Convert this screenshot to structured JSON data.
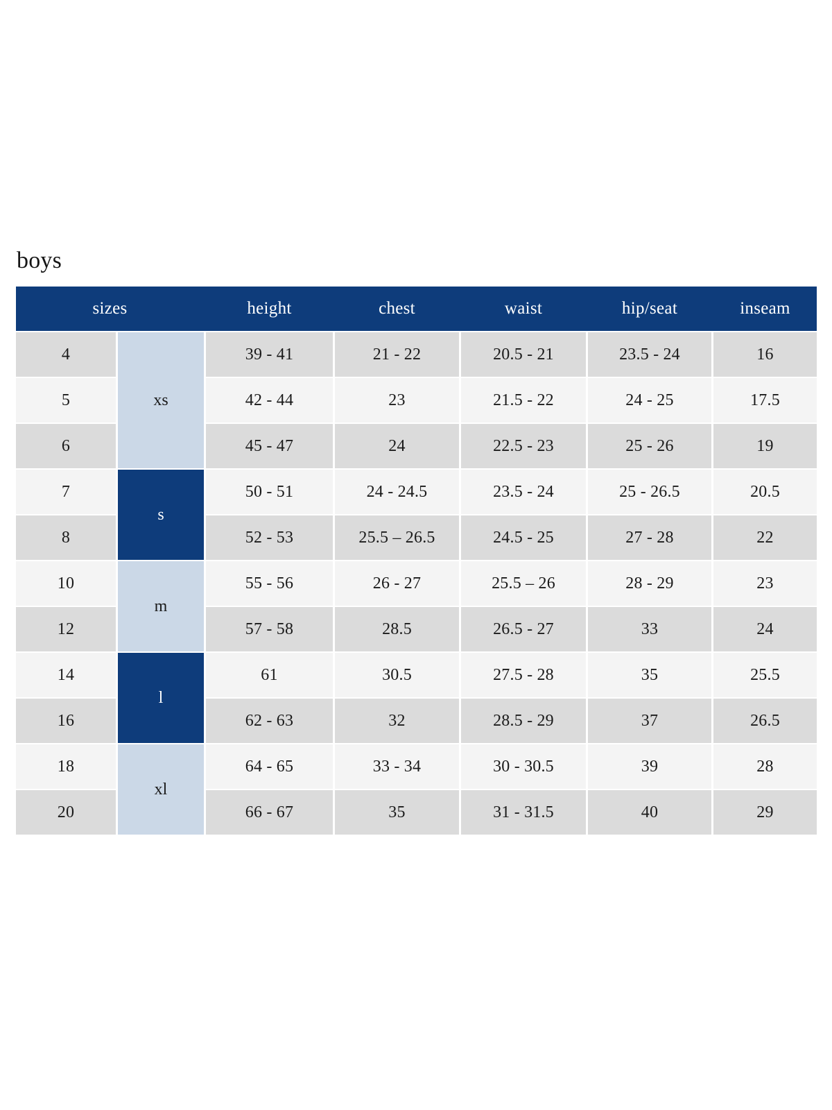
{
  "page": {
    "title": "boys"
  },
  "colors": {
    "header_navy": "#0e3c7b",
    "group_light_blue": "#cbd8e7",
    "row_gray": "#dbdbdb",
    "row_light": "#f4f4f4",
    "text_dark": "#1a1a1a",
    "text_white": "#ffffff"
  },
  "table": {
    "columns": [
      "sizes",
      "height",
      "chest",
      "waist",
      "hip/seat",
      "inseam"
    ],
    "groups": [
      {
        "label": "xs",
        "rows": 3,
        "variant": "light"
      },
      {
        "label": "s",
        "rows": 2,
        "variant": "dark"
      },
      {
        "label": "m",
        "rows": 2,
        "variant": "light"
      },
      {
        "label": "l",
        "rows": 2,
        "variant": "dark"
      },
      {
        "label": "xl",
        "rows": 2,
        "variant": "light"
      }
    ],
    "rows": [
      {
        "size": "4",
        "height": "39 - 41",
        "chest": "21 - 22",
        "waist": "20.5 - 21",
        "hip_seat": "23.5 - 24",
        "inseam": "16"
      },
      {
        "size": "5",
        "height": "42 - 44",
        "chest": "23",
        "waist": "21.5 - 22",
        "hip_seat": "24 - 25",
        "inseam": "17.5"
      },
      {
        "size": "6",
        "height": "45 - 47",
        "chest": "24",
        "waist": "22.5 - 23",
        "hip_seat": "25 - 26",
        "inseam": "19"
      },
      {
        "size": "7",
        "height": "50 - 51",
        "chest": "24 - 24.5",
        "waist": "23.5 - 24",
        "hip_seat": "25 - 26.5",
        "inseam": "20.5"
      },
      {
        "size": "8",
        "height": "52 - 53",
        "chest": "25.5 – 26.5",
        "waist": "24.5 - 25",
        "hip_seat": "27 - 28",
        "inseam": "22"
      },
      {
        "size": "10",
        "height": "55 - 56",
        "chest": "26 - 27",
        "waist": "25.5 – 26",
        "hip_seat": "28 - 29",
        "inseam": "23"
      },
      {
        "size": "12",
        "height": "57 - 58",
        "chest": "28.5",
        "waist": "26.5 - 27",
        "hip_seat": "33",
        "inseam": "24"
      },
      {
        "size": "14",
        "height": "61",
        "chest": "30.5",
        "waist": "27.5 - 28",
        "hip_seat": "35",
        "inseam": "25.5"
      },
      {
        "size": "16",
        "height": "62 - 63",
        "chest": "32",
        "waist": "28.5 - 29",
        "hip_seat": "37",
        "inseam": "26.5"
      },
      {
        "size": "18",
        "height": "64 - 65",
        "chest": "33 - 34",
        "waist": "30 - 30.5",
        "hip_seat": "39",
        "inseam": "28"
      },
      {
        "size": "20",
        "height": "66 - 67",
        "chest": "35",
        "waist": "31 - 31.5",
        "hip_seat": "40",
        "inseam": "29"
      }
    ]
  }
}
